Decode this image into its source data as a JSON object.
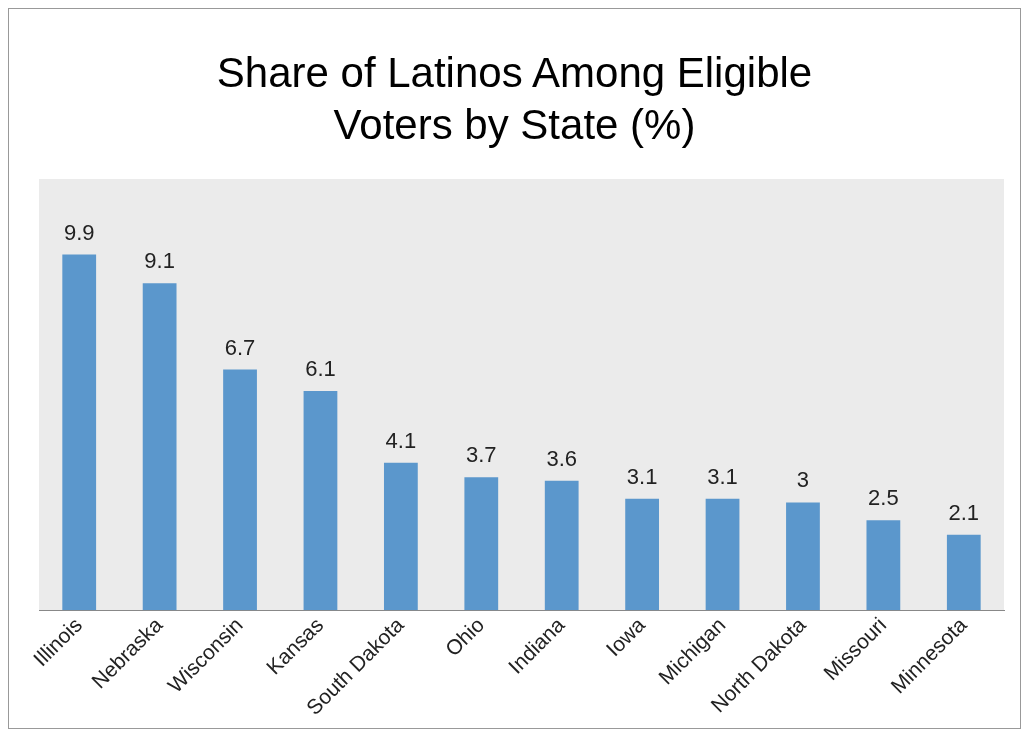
{
  "chart_data": {
    "type": "bar",
    "title": "Share of Latinos Among Eligible Voters by State (%)",
    "categories": [
      "Illinois",
      "Nebraska",
      "Wisconsin",
      "Kansas",
      "South Dakota",
      "Ohio",
      "Indiana",
      "Iowa",
      "Michigan",
      "North Dakota",
      "Missouri",
      "Minnesota"
    ],
    "values": [
      9.9,
      9.1,
      6.7,
      6.1,
      4.1,
      3.7,
      3.6,
      3.1,
      3.1,
      3,
      2.5,
      2.1
    ],
    "color": "#5b97cc",
    "data_labels": true,
    "grid": false,
    "legend": false
  }
}
